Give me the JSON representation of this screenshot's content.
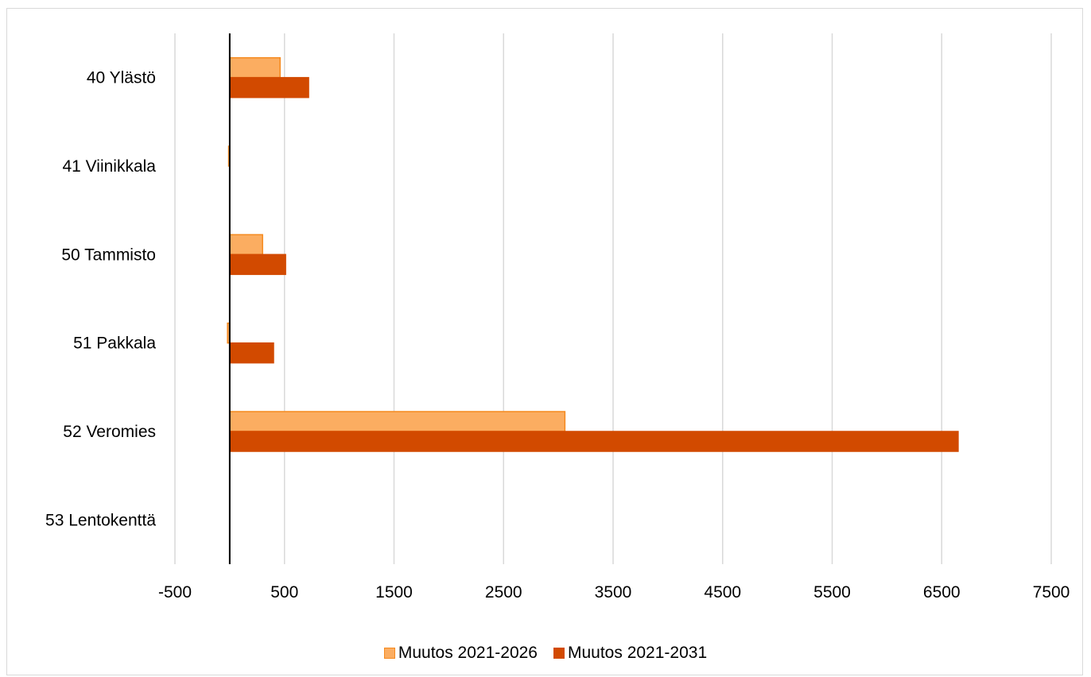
{
  "chart_data": {
    "type": "bar",
    "orientation": "horizontal",
    "categories": [
      "40 Ylästö",
      "41 Viinikkala",
      "50 Tammisto",
      "51 Pakkala",
      "52 Veromies",
      "53 Lentokenttä"
    ],
    "series": [
      {
        "name": "Muutos 2021-2026",
        "values": [
          460,
          -10,
          300,
          -20,
          3060,
          0
        ],
        "color": "#fbad61",
        "stroke": "#f58a1f"
      },
      {
        "name": "Muutos 2021-2031",
        "values": [
          720,
          0,
          510,
          400,
          6650,
          0
        ],
        "color": "#d24a00",
        "stroke": "#d24a00"
      }
    ],
    "xlim": [
      -1000,
      7500
    ],
    "xticks": [
      -500,
      500,
      1500,
      2500,
      3500,
      4500,
      5500,
      6500,
      7500
    ],
    "xtick_labels": [
      "-500",
      "500",
      "1500",
      "2500",
      "3500",
      "4500",
      "5500",
      "6500",
      "7500"
    ],
    "grid": "vertical",
    "legend_position": "bottom"
  }
}
